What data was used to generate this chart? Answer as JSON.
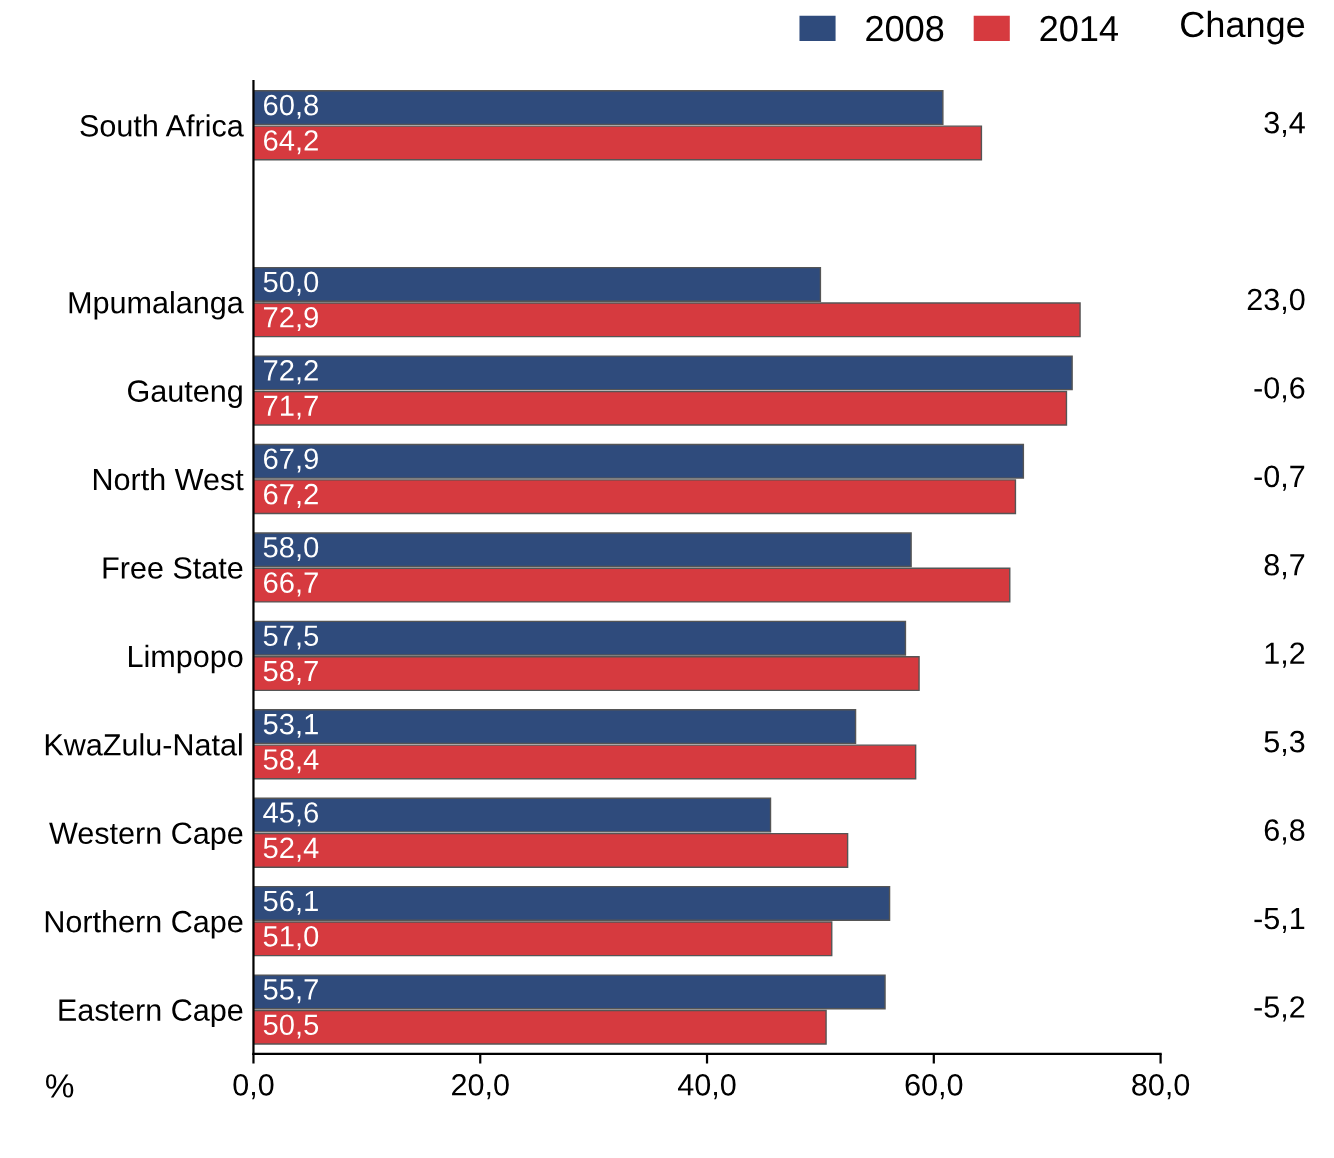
{
  "chart_data": {
    "type": "bar",
    "orientation": "horizontal",
    "xlabel": "%",
    "categories": [
      "South Africa",
      null,
      "Mpumalanga",
      "Gauteng",
      "North West",
      "Free State",
      "Limpopo",
      "KwaZulu-Natal",
      "Western Cape",
      "Northern Cape",
      "Eastern Cape"
    ],
    "series": [
      {
        "name": "2008",
        "color": "#2f4b7c",
        "values": [
          60.8,
          null,
          50.0,
          72.2,
          67.9,
          58.0,
          57.5,
          53.1,
          45.6,
          56.1,
          55.7
        ],
        "value_labels": [
          "60,8",
          null,
          "50,0",
          "72,2",
          "67,9",
          "58,0",
          "57,5",
          "53,1",
          "45,6",
          "56,1",
          "55,7"
        ]
      },
      {
        "name": "2014",
        "color": "#d63a3f",
        "values": [
          64.2,
          null,
          72.9,
          71.7,
          67.2,
          66.7,
          58.7,
          58.4,
          52.4,
          51.0,
          50.5
        ],
        "value_labels": [
          "64,2",
          null,
          "72,9",
          "71,7",
          "67,2",
          "66,7",
          "58,7",
          "58,4",
          "52,4",
          "51,0",
          "50,5"
        ]
      }
    ],
    "xlim": [
      0,
      80
    ],
    "xticks": [
      {
        "value": 0,
        "label": "0,0"
      },
      {
        "value": 20,
        "label": "20,0"
      },
      {
        "value": 40,
        "label": "40,0"
      },
      {
        "value": 60,
        "label": "60,0"
      },
      {
        "value": 80,
        "label": "80,0"
      }
    ],
    "legend": "top right",
    "grid": false,
    "annotations": [
      "Change",
      "3,4",
      "23,0",
      "-0,6",
      "-0,7",
      "8,7",
      "1,2",
      "5,3",
      "6,8",
      "-5,1",
      "-5,2"
    ]
  }
}
